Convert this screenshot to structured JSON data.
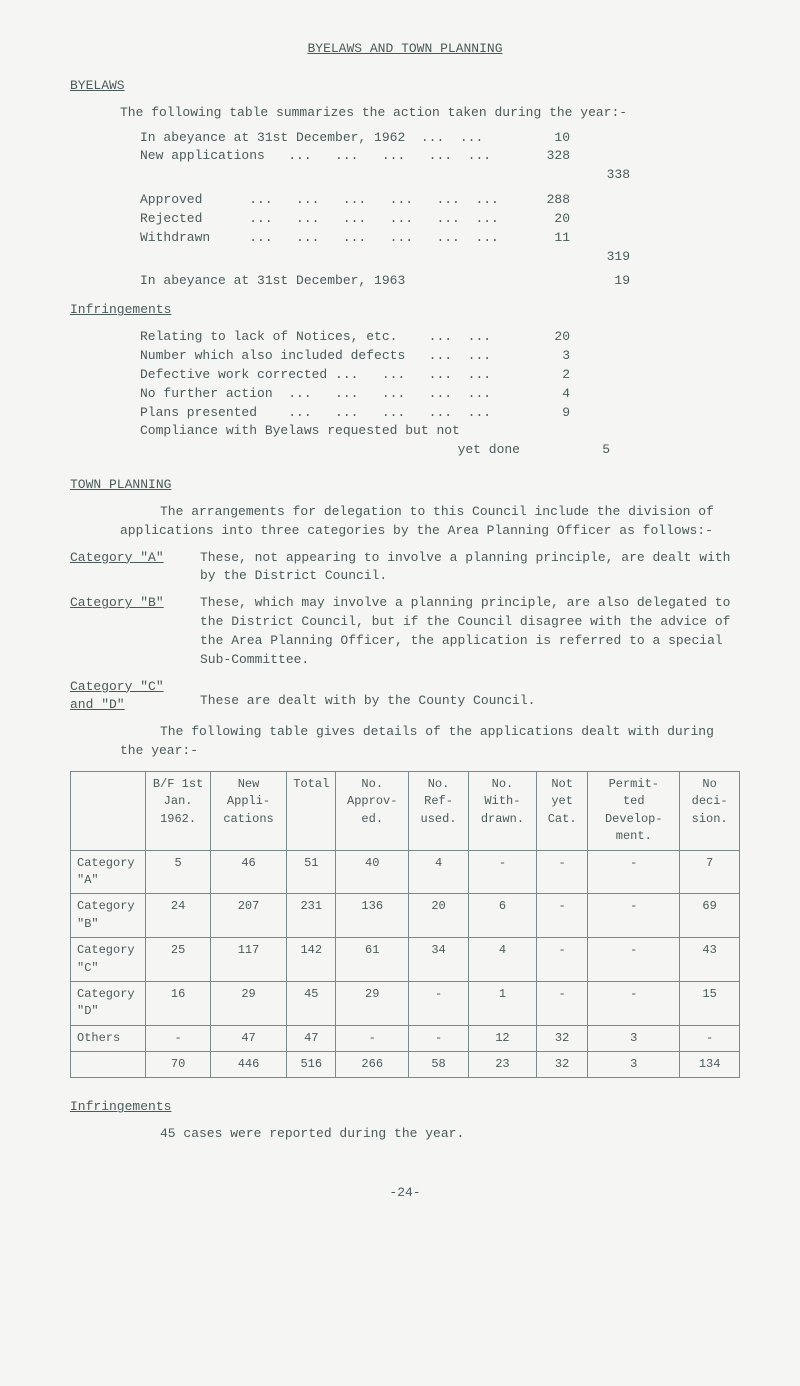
{
  "main_title": "BYELAWS AND TOWN PLANNING",
  "byelaws": {
    "heading": "BYELAWS",
    "intro": "The following table summarizes the action taken during the year:-",
    "group1": [
      {
        "label": "In abeyance at 31st December, 1962  ...  ...",
        "val": "10"
      },
      {
        "label": "New applications   ...   ...   ...   ...  ...",
        "val": "328"
      }
    ],
    "group1_total": "338",
    "group2": [
      {
        "label": "Approved      ...   ...   ...   ...   ...  ...",
        "val": "288"
      },
      {
        "label": "Rejected      ...   ...   ...   ...   ...  ...",
        "val": "20"
      },
      {
        "label": "Withdrawn     ...   ...   ...   ...   ...  ...",
        "val": "11"
      }
    ],
    "group2_total": "319",
    "abeyance_label": "In abeyance at 31st December, 1963",
    "abeyance_val": "19",
    "infringe_head": "Infringements",
    "infringe_rows": [
      {
        "label": "Relating to lack of Notices, etc.    ...  ...",
        "val": "20"
      },
      {
        "label": "Number which also included defects   ...  ...",
        "val": "3"
      },
      {
        "label": "Defective work corrected ...   ...   ...  ...",
        "val": "2"
      },
      {
        "label": "No further action  ...   ...   ...   ...  ...",
        "val": "4"
      },
      {
        "label": "Plans presented    ...   ...   ...   ...  ...",
        "val": "9"
      },
      {
        "label": "Compliance with Byelaws requested but not",
        "val": ""
      }
    ],
    "infringe_yet": "yet done",
    "infringe_yet_val": "5"
  },
  "town": {
    "heading": "TOWN PLANNING",
    "para1": "The arrangements for delegation to this Council include the division of applications into three categories by the Area Planning Officer as follows:-",
    "catA_label": "Category \"A\"",
    "catA_desc": "These, not appearing to involve a planning principle, are dealt with by the District Council.",
    "catB_label": "Category \"B\"",
    "catB_desc": "These, which may involve a planning principle, are also delegated to the District Council, but if the Council disagree with the advice of the Area Planning Officer, the application is referred to a special Sub-Committee.",
    "catCD_label1": "Category \"C\"",
    "catCD_label2": "and \"D\"",
    "catCD_desc": "These are dealt with by the County Council.",
    "para2": "The following table gives details of the applications dealt with during the year:-"
  },
  "table": {
    "headers": [
      "",
      "B/F 1st Jan. 1962.",
      "New Appli- cations",
      "Total",
      "No. Approv- ed.",
      "No. Ref- used.",
      "No. With- drawn.",
      "Not yet Cat.",
      "Permit- ted Develop- ment.",
      "No deci- sion."
    ],
    "rows": [
      [
        "Category \"A\"",
        "5",
        "46",
        "51",
        "40",
        "4",
        "-",
        "-",
        "-",
        "7"
      ],
      [
        "Category \"B\"",
        "24",
        "207",
        "231",
        "136",
        "20",
        "6",
        "-",
        "-",
        "69"
      ],
      [
        "Category \"C\"",
        "25",
        "117",
        "142",
        "61",
        "34",
        "4",
        "-",
        "-",
        "43"
      ],
      [
        "Category \"D\"",
        "16",
        "29",
        "45",
        "29",
        "-",
        "1",
        "-",
        "-",
        "15"
      ],
      [
        "Others",
        "-",
        "47",
        "47",
        "-",
        "-",
        "12",
        "32",
        "3",
        "-"
      ],
      [
        "",
        "70",
        "446",
        "516",
        "266",
        "58",
        "23",
        "32",
        "3",
        "134"
      ]
    ]
  },
  "infringe2_head": "Infringements",
  "infringe2_line": "45 cases were reported during the year.",
  "page_num": "-24-"
}
